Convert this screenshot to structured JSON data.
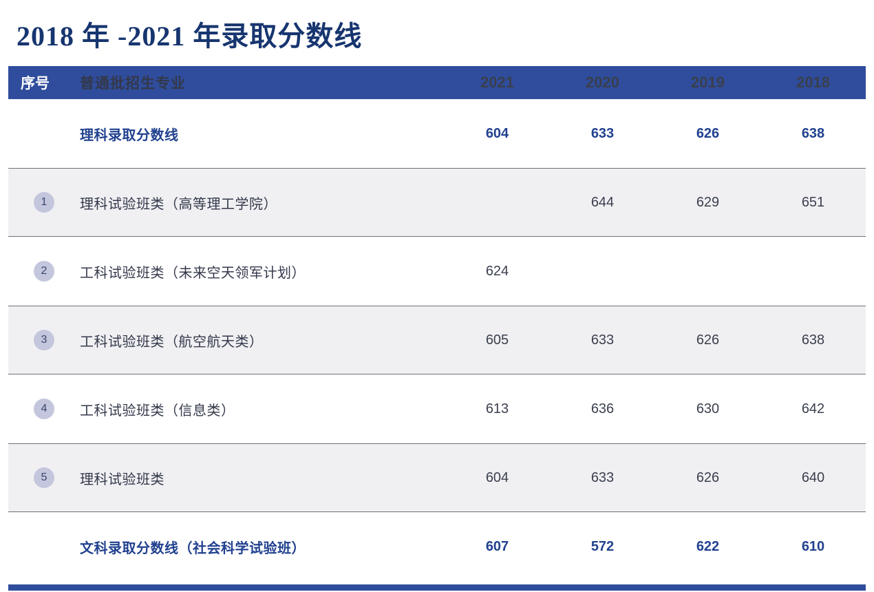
{
  "page": {
    "title": "2018 年 -2021 年录取分数线"
  },
  "table": {
    "headers": [
      "序号",
      "普通批招生专业",
      "2021",
      "2020",
      "2019",
      "2018"
    ],
    "rows": [
      {
        "num": "",
        "name": "理科录取分数线",
        "scores": [
          "604",
          "633",
          "626",
          "638"
        ]
      },
      {
        "num": "1",
        "name": "理科试验班类（高等理工学院）",
        "scores": [
          "",
          "644",
          "629",
          "651"
        ]
      },
      {
        "num": "2",
        "name": "工科试验班类（未来空天领军计划）",
        "scores": [
          "624",
          "",
          "",
          ""
        ]
      },
      {
        "num": "3",
        "name": "工科试验班类（航空航天类）",
        "scores": [
          "605",
          "633",
          "626",
          "638"
        ]
      },
      {
        "num": "4",
        "name": "工科试验班类（信息类）",
        "scores": [
          "613",
          "636",
          "630",
          "642"
        ]
      },
      {
        "num": "5",
        "name": "理科试验班类",
        "scores": [
          "604",
          "633",
          "626",
          "640"
        ]
      },
      {
        "num": "",
        "name": "文科录取分数线（社会科学试验班）",
        "scores": [
          "607",
          "572",
          "622",
          "610"
        ]
      }
    ],
    "colors": {
      "header_bg": "#2f4d9c",
      "accent_text": "#21418f",
      "title_text": "#17356f",
      "row_alt_bg": "#f0f0f3",
      "badge_bg": "#c3c6dd"
    }
  },
  "chart_data": {
    "type": "table",
    "title": "2018 年 -2021 年录取分数线",
    "columns": [
      "序号",
      "普通批招生专业",
      "2021",
      "2020",
      "2019",
      "2018"
    ],
    "rows": [
      [
        "",
        "理科录取分数线",
        "604",
        "633",
        "626",
        "638"
      ],
      [
        "1",
        "理科试验班类（高等理工学院）",
        "",
        "644",
        "629",
        "651"
      ],
      [
        "2",
        "工科试验班类（未来空天领军计划）",
        "624",
        "",
        "",
        ""
      ],
      [
        "3",
        "工科试验班类（航空航天类）",
        "605",
        "633",
        "626",
        "638"
      ],
      [
        "4",
        "工科试验班类（信息类）",
        "613",
        "636",
        "630",
        "642"
      ],
      [
        "5",
        "理科试验班类",
        "604",
        "633",
        "626",
        "640"
      ],
      [
        "",
        "文科录取分数线（社会科学试验班）",
        "607",
        "572",
        "622",
        "610"
      ]
    ]
  }
}
